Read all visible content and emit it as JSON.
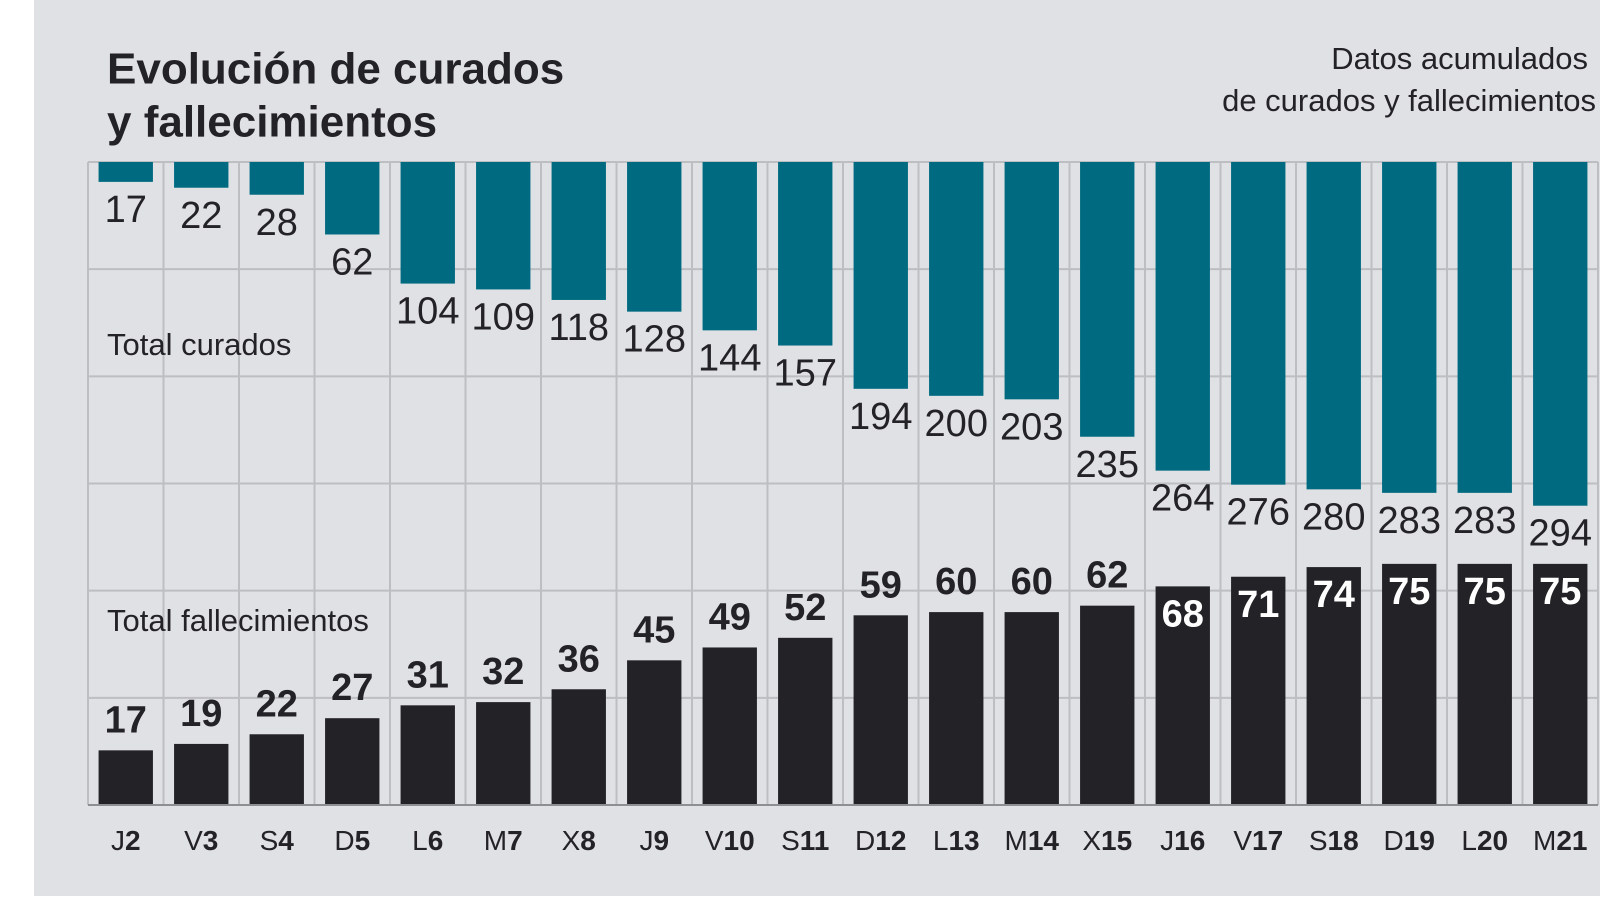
{
  "chart_data": {
    "type": "mirrored-bar",
    "title": [
      "Evolución de curados",
      "y fallecimientos"
    ],
    "subtitle": [
      "Datos acumulados",
      "de curados y fallecimientos"
    ],
    "categories": [
      "J2",
      "V3",
      "S4",
      "D5",
      "L6",
      "M7",
      "X8",
      "J9",
      "V10",
      "S11",
      "D12",
      "L13",
      "M14",
      "X15",
      "J16",
      "V17",
      "S18",
      "D19",
      "L20",
      "M21"
    ],
    "series": [
      {
        "name": "Total curados",
        "color": "#006a80",
        "axis": "y",
        "values": [
          17,
          22,
          28,
          62,
          104,
          109,
          118,
          128,
          144,
          157,
          194,
          200,
          203,
          235,
          264,
          276,
          280,
          283,
          283,
          294
        ]
      },
      {
        "name": "Total fallecimientos",
        "color": "#232327",
        "axis": "y2",
        "values": [
          17,
          19,
          22,
          27,
          31,
          32,
          36,
          45,
          49,
          52,
          59,
          60,
          60,
          62,
          68,
          71,
          74,
          75,
          75,
          75
        ]
      }
    ],
    "ylim": [
      0,
      550
    ],
    "y_inverted": true,
    "y2lim": [
      0,
      200
    ],
    "grid": true
  }
}
